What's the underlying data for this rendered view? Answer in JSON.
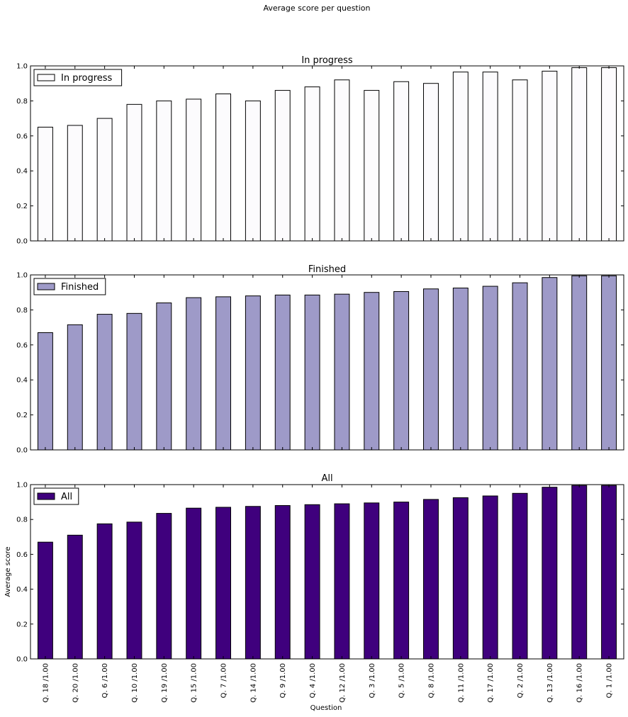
{
  "figure_title": "Average score per question",
  "xlabel": "Question",
  "ylabel": "Average score",
  "chart_data": [
    {
      "type": "bar",
      "title": "In progress",
      "legend": "In progress",
      "legend_position": "top-left",
      "color": "#fcfbfd",
      "categories": [
        "Q. 18 /1.00",
        "Q. 20 /1.00",
        "Q. 6 /1.00",
        "Q. 10 /1.00",
        "Q. 19 /1.00",
        "Q. 15 /1.00",
        "Q. 7 /1.00",
        "Q. 14 /1.00",
        "Q. 9 /1.00",
        "Q. 4 /1.00",
        "Q. 12 /1.00",
        "Q. 3 /1.00",
        "Q. 5 /1.00",
        "Q. 8 /1.00",
        "Q. 11 /1.00",
        "Q. 17 /1.00",
        "Q. 2 /1.00",
        "Q. 13 /1.00",
        "Q. 16 /1.00",
        "Q. 1 /1.00"
      ],
      "values": [
        0.65,
        0.66,
        0.7,
        0.78,
        0.8,
        0.81,
        0.84,
        0.8,
        0.86,
        0.88,
        0.92,
        0.86,
        0.91,
        0.9,
        0.965,
        0.965,
        0.92,
        0.97,
        0.99,
        0.99
      ],
      "ylim": [
        0,
        1.0
      ],
      "yticks": [
        "0.0",
        "0.2",
        "0.4",
        "0.6",
        "0.8",
        "1.0"
      ]
    },
    {
      "type": "bar",
      "title": "Finished",
      "legend": "Finished",
      "legend_position": "top-left",
      "color": "#9e9ac8",
      "categories": [
        "Q. 18 /1.00",
        "Q. 20 /1.00",
        "Q. 6 /1.00",
        "Q. 10 /1.00",
        "Q. 19 /1.00",
        "Q. 15 /1.00",
        "Q. 7 /1.00",
        "Q. 14 /1.00",
        "Q. 9 /1.00",
        "Q. 4 /1.00",
        "Q. 12 /1.00",
        "Q. 3 /1.00",
        "Q. 5 /1.00",
        "Q. 8 /1.00",
        "Q. 11 /1.00",
        "Q. 17 /1.00",
        "Q. 2 /1.00",
        "Q. 13 /1.00",
        "Q. 16 /1.00",
        "Q. 1 /1.00"
      ],
      "values": [
        0.67,
        0.715,
        0.775,
        0.78,
        0.84,
        0.87,
        0.875,
        0.88,
        0.885,
        0.885,
        0.89,
        0.9,
        0.905,
        0.92,
        0.925,
        0.935,
        0.955,
        0.985,
        0.995,
        0.995
      ],
      "ylim": [
        0,
        1.0
      ],
      "yticks": [
        "0.0",
        "0.2",
        "0.4",
        "0.6",
        "0.8",
        "1.0"
      ]
    },
    {
      "type": "bar",
      "title": "All",
      "legend": "All",
      "legend_position": "top-left",
      "color": "#3f007d",
      "categories": [
        "Q. 18 /1.00",
        "Q. 20 /1.00",
        "Q. 6 /1.00",
        "Q. 10 /1.00",
        "Q. 19 /1.00",
        "Q. 15 /1.00",
        "Q. 7 /1.00",
        "Q. 14 /1.00",
        "Q. 9 /1.00",
        "Q. 4 /1.00",
        "Q. 12 /1.00",
        "Q. 3 /1.00",
        "Q. 5 /1.00",
        "Q. 8 /1.00",
        "Q. 11 /1.00",
        "Q. 17 /1.00",
        "Q. 2 /1.00",
        "Q. 13 /1.00",
        "Q. 16 /1.00",
        "Q. 1 /1.00"
      ],
      "values": [
        0.67,
        0.71,
        0.775,
        0.785,
        0.835,
        0.865,
        0.87,
        0.875,
        0.88,
        0.885,
        0.89,
        0.895,
        0.9,
        0.915,
        0.925,
        0.935,
        0.95,
        0.985,
        0.995,
        0.995
      ],
      "ylim": [
        0,
        1.0
      ],
      "yticks": [
        "0.0",
        "0.2",
        "0.4",
        "0.6",
        "0.8",
        "1.0"
      ],
      "show_xticklabels": true
    }
  ]
}
